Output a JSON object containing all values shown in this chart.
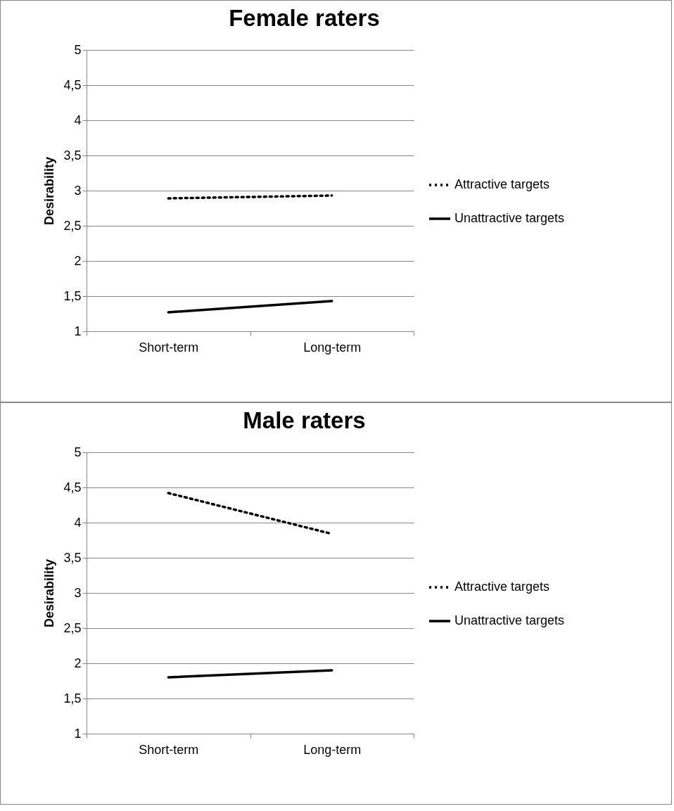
{
  "chart_data": [
    {
      "type": "line",
      "title": "Female raters",
      "ylabel": "Desirability",
      "categories": [
        "Short-term",
        "Long-term"
      ],
      "series": [
        {
          "name": "Attractive targets",
          "color": "#000000",
          "line_style": "dotted",
          "values": [
            2.89,
            2.93
          ]
        },
        {
          "name": "Unattractive targets",
          "color": "#000000",
          "line_style": "solid",
          "values": [
            1.27,
            1.43
          ]
        }
      ],
      "ylim": [
        1,
        5
      ],
      "yticks": [
        1,
        {
          "value": 1.5,
          "label": "1,5"
        },
        2,
        {
          "value": 2.5,
          "label": "2,5"
        },
        3,
        {
          "value": 3.5,
          "label": "3,5"
        },
        4,
        {
          "value": 4.5,
          "label": "4,5"
        },
        5
      ],
      "grid": "y",
      "legend": "right"
    },
    {
      "type": "line",
      "title": "Male raters",
      "ylabel": "Desirability",
      "categories": [
        "Short-term",
        "Long-term"
      ],
      "series": [
        {
          "name": "Attractive targets",
          "color": "#000000",
          "line_style": "dotted",
          "values": [
            4.42,
            3.84
          ]
        },
        {
          "name": "Unattractive targets",
          "color": "#000000",
          "line_style": "solid",
          "values": [
            1.8,
            1.9
          ]
        }
      ],
      "ylim": [
        1,
        5
      ],
      "yticks": [
        1,
        {
          "value": 1.5,
          "label": "1,5"
        },
        2,
        {
          "value": 2.5,
          "label": "2,5"
        },
        3,
        {
          "value": 3.5,
          "label": "3,5"
        },
        4,
        {
          "value": 4.5,
          "label": "4,5"
        },
        5
      ],
      "grid": "y",
      "legend": "right"
    }
  ]
}
